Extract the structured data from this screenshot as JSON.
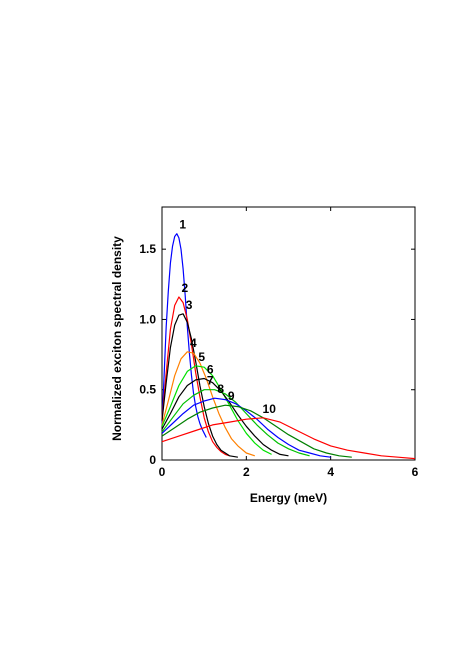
{
  "chart_data": {
    "type": "line",
    "title": "",
    "xlabel": "Energy (meV)",
    "ylabel": "Normalized exciton spectral density",
    "xlim": [
      0,
      6
    ],
    "ylim": [
      0,
      1.8
    ],
    "x_ticks": [
      0,
      2,
      4,
      6
    ],
    "x_tick_labels": [
      "0",
      "2",
      "4",
      "6"
    ],
    "y_ticks": [
      0,
      0.5,
      1.0,
      1.5
    ],
    "y_tick_labels": [
      "0",
      "0.5",
      "1.0",
      "1.5"
    ],
    "grid": false,
    "series": [
      {
        "label": "1",
        "color": "#0000ff",
        "x": [
          0.0,
          0.05,
          0.1,
          0.15,
          0.2,
          0.25,
          0.3,
          0.35,
          0.4,
          0.45,
          0.5,
          0.55,
          0.6,
          0.65,
          0.7,
          0.75,
          0.8,
          0.85,
          0.9,
          0.95,
          1.0,
          1.05
        ],
        "y": [
          0.25,
          0.6,
          0.95,
          1.2,
          1.4,
          1.52,
          1.59,
          1.61,
          1.58,
          1.5,
          1.36,
          1.17,
          0.95,
          0.76,
          0.6,
          0.47,
          0.38,
          0.31,
          0.26,
          0.22,
          0.19,
          0.16
        ]
      },
      {
        "label": "2",
        "color": "#ff0000",
        "x": [
          0.0,
          0.1,
          0.2,
          0.3,
          0.4,
          0.5,
          0.6,
          0.7,
          0.8,
          0.9,
          1.0,
          1.1,
          1.2,
          1.3,
          1.4,
          1.5,
          1.6
        ],
        "y": [
          0.28,
          0.62,
          0.93,
          1.1,
          1.16,
          1.12,
          1.0,
          0.82,
          0.62,
          0.45,
          0.3,
          0.2,
          0.13,
          0.09,
          0.06,
          0.04,
          0.03
        ]
      },
      {
        "label": "3",
        "color": "#000000",
        "x": [
          0.0,
          0.1,
          0.2,
          0.3,
          0.4,
          0.5,
          0.6,
          0.7,
          0.8,
          0.9,
          1.0,
          1.1,
          1.2,
          1.3,
          1.4,
          1.5,
          1.6,
          1.8
        ],
        "y": [
          0.28,
          0.55,
          0.8,
          0.96,
          1.03,
          1.04,
          0.98,
          0.86,
          0.7,
          0.53,
          0.38,
          0.26,
          0.17,
          0.11,
          0.07,
          0.05,
          0.03,
          0.02
        ]
      },
      {
        "label": "4",
        "color": "#ff8000",
        "x": [
          0.0,
          0.15,
          0.3,
          0.45,
          0.6,
          0.75,
          0.9,
          1.05,
          1.2,
          1.35,
          1.5,
          1.65,
          1.8,
          2.0,
          2.2
        ],
        "y": [
          0.25,
          0.42,
          0.6,
          0.72,
          0.77,
          0.76,
          0.69,
          0.58,
          0.45,
          0.33,
          0.23,
          0.15,
          0.1,
          0.05,
          0.03
        ]
      },
      {
        "label": "5",
        "color": "#00e000",
        "x": [
          0.0,
          0.2,
          0.4,
          0.6,
          0.8,
          1.0,
          1.2,
          1.4,
          1.6,
          1.8,
          2.0,
          2.2,
          2.4,
          2.6
        ],
        "y": [
          0.24,
          0.38,
          0.53,
          0.63,
          0.67,
          0.66,
          0.6,
          0.5,
          0.39,
          0.28,
          0.19,
          0.12,
          0.07,
          0.04
        ]
      },
      {
        "label": "6",
        "color": "#000000",
        "x": [
          0.0,
          0.2,
          0.4,
          0.6,
          0.8,
          1.0,
          1.2,
          1.4,
          1.6,
          1.8,
          2.0,
          2.2,
          2.4,
          2.6,
          2.8,
          3.0
        ],
        "y": [
          0.22,
          0.33,
          0.45,
          0.53,
          0.57,
          0.58,
          0.55,
          0.49,
          0.41,
          0.32,
          0.24,
          0.17,
          0.11,
          0.07,
          0.04,
          0.03
        ]
      },
      {
        "label": "7",
        "color": "#00c000",
        "x": [
          0.0,
          0.25,
          0.5,
          0.75,
          1.0,
          1.25,
          1.5,
          1.75,
          2.0,
          2.25,
          2.5,
          2.75,
          3.0,
          3.25,
          3.5
        ],
        "y": [
          0.2,
          0.3,
          0.4,
          0.46,
          0.5,
          0.5,
          0.47,
          0.41,
          0.33,
          0.25,
          0.18,
          0.12,
          0.08,
          0.05,
          0.03
        ]
      },
      {
        "label": "8",
        "color": "#0000ff",
        "x": [
          0.0,
          0.25,
          0.5,
          0.75,
          1.0,
          1.25,
          1.5,
          1.75,
          2.0,
          2.25,
          2.5,
          2.75,
          3.0,
          3.25,
          3.5,
          3.75,
          4.0
        ],
        "y": [
          0.19,
          0.26,
          0.33,
          0.39,
          0.42,
          0.44,
          0.43,
          0.4,
          0.35,
          0.29,
          0.22,
          0.16,
          0.11,
          0.07,
          0.05,
          0.03,
          0.02
        ]
      },
      {
        "label": "9",
        "color": "#008000",
        "x": [
          0.0,
          0.3,
          0.6,
          0.9,
          1.2,
          1.5,
          1.8,
          2.1,
          2.4,
          2.7,
          3.0,
          3.3,
          3.6,
          3.9,
          4.2,
          4.5
        ],
        "y": [
          0.17,
          0.23,
          0.29,
          0.34,
          0.37,
          0.39,
          0.38,
          0.35,
          0.3,
          0.24,
          0.18,
          0.13,
          0.08,
          0.05,
          0.03,
          0.02
        ]
      },
      {
        "label": "10",
        "color": "#ff0000",
        "x": [
          0.0,
          0.4,
          0.8,
          1.2,
          1.6,
          2.0,
          2.4,
          2.8,
          3.2,
          3.6,
          4.0,
          4.4,
          4.8,
          5.2,
          5.6,
          6.0
        ],
        "y": [
          0.13,
          0.17,
          0.21,
          0.25,
          0.27,
          0.29,
          0.3,
          0.27,
          0.21,
          0.15,
          0.1,
          0.07,
          0.05,
          0.03,
          0.02,
          0.01
        ]
      }
    ]
  }
}
